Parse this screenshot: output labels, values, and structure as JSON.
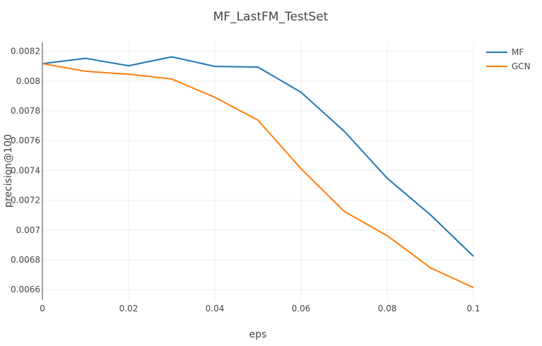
{
  "chart_data": {
    "type": "line",
    "title": "MF_LastFM_TestSet",
    "xlabel": "eps",
    "ylabel": "precision@100",
    "xlim": [
      0,
      0.1
    ],
    "ylim": [
      0.00653,
      0.00826
    ],
    "grid": true,
    "legend_position": "top-right",
    "x": [
      0,
      0.01,
      0.02,
      0.03,
      0.04,
      0.05,
      0.06,
      0.07,
      0.08,
      0.09,
      0.1
    ],
    "x_ticks": [
      0,
      0.02,
      0.04,
      0.06,
      0.08,
      0.1
    ],
    "x_tick_labels": [
      "0",
      "0.02",
      "0.04",
      "0.06",
      "0.08",
      "0.1"
    ],
    "y_ticks": [
      0.0066,
      0.0068,
      0.007,
      0.0072,
      0.0074,
      0.0076,
      0.0078,
      0.008,
      0.0082
    ],
    "y_tick_labels": [
      "0.0066",
      "0.0068",
      "0.007",
      "0.0072",
      "0.0074",
      "0.0076",
      "0.0078",
      "0.008",
      "0.0082"
    ],
    "series": [
      {
        "name": "MF",
        "color": "#1f77b4",
        "values": [
          0.008117,
          0.008153,
          0.008103,
          0.008163,
          0.008099,
          0.008094,
          0.007925,
          0.007664,
          0.007348,
          0.007103,
          0.006824
        ]
      },
      {
        "name": "GCN",
        "color": "#ff7f0e",
        "values": [
          0.008117,
          0.008066,
          0.008046,
          0.008014,
          0.007891,
          0.007738,
          0.007412,
          0.007126,
          0.006962,
          0.006747,
          0.006614
        ]
      }
    ]
  }
}
